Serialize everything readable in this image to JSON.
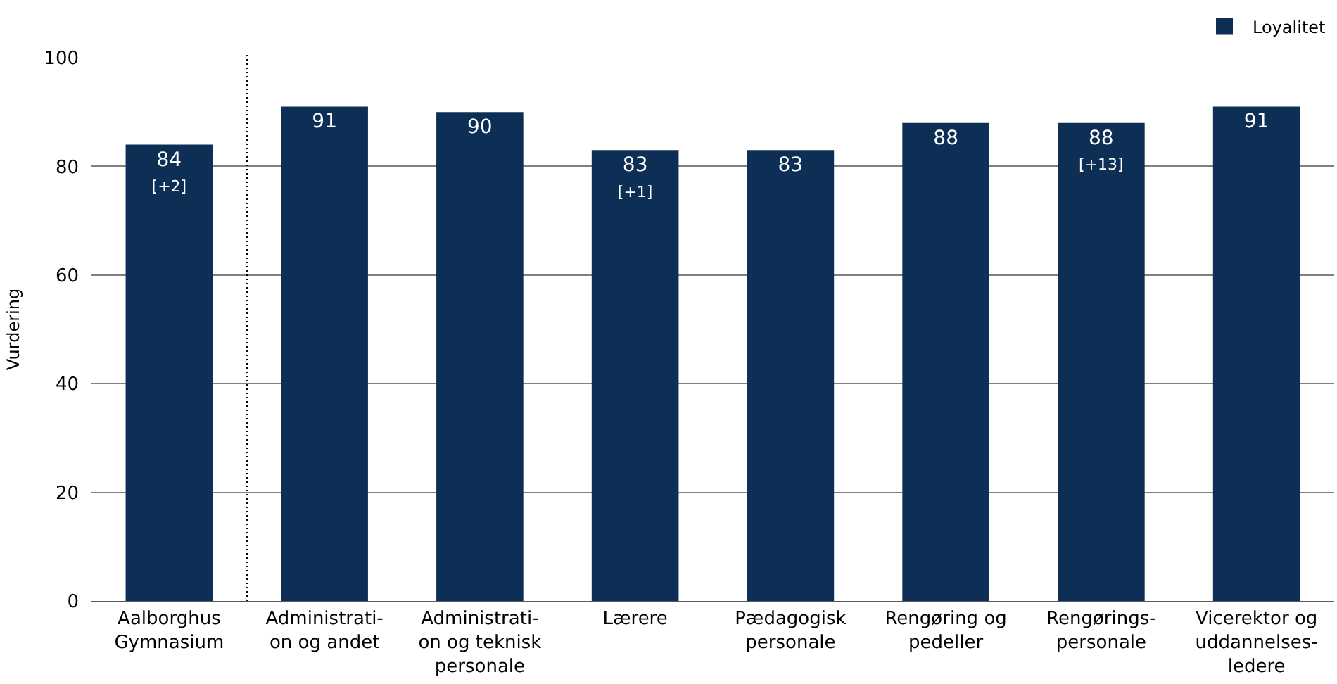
{
  "chart_data": {
    "type": "bar",
    "ylabel": "Vurdering",
    "categories": [
      "Aalborghus\nGymnasium",
      "Administrati-\non og andet",
      "Administrati-\non og teknisk\npersonale",
      "Lærere",
      "Pædagogisk\npersonale",
      "Rengøring og\npedeller",
      "Rengørings-\npersonale",
      "Vicerektor og\nuddannelses-\nledere"
    ],
    "series": [
      {
        "name": "Loyalitet",
        "color": "#0d2f56",
        "values": [
          84,
          91,
          90,
          83,
          83,
          88,
          88,
          91
        ],
        "value_labels": [
          "84\n[+2]",
          "91",
          "90",
          "83\n[+1]",
          "83",
          "88",
          "88\n[+13]",
          "91"
        ]
      }
    ],
    "ylim": [
      0,
      100
    ],
    "yticks": [
      0,
      20,
      40,
      60,
      80,
      100
    ],
    "grid": "y",
    "legend": "top right"
  }
}
